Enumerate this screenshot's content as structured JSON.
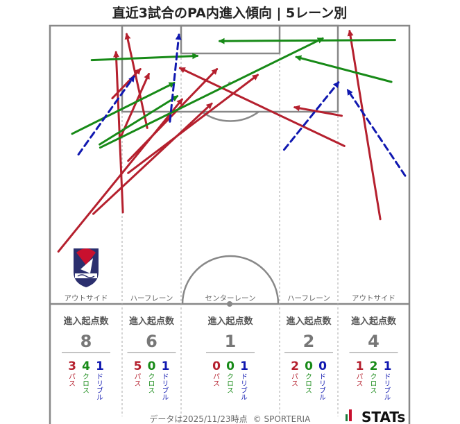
{
  "title": "直近3試合のPA内進入傾向 | 5レーン別",
  "colors": {
    "pass": "#b5202e",
    "cross": "#178a17",
    "dribble": "#1018b0",
    "pitch_line": "#888888"
  },
  "chart_data": {
    "type": "pitch-arrows",
    "lanes": [
      {
        "name": "アウトサイド",
        "header": "進入起点数",
        "total": 8,
        "counts": [
          {
            "type": "pass",
            "value": 3,
            "label": "パス"
          },
          {
            "type": "cross",
            "value": 4,
            "label": "クロス"
          },
          {
            "type": "dribble",
            "value": 1,
            "label": "ドリブル"
          }
        ]
      },
      {
        "name": "ハーフレーン",
        "header": "進入起点数",
        "total": 6,
        "counts": [
          {
            "type": "pass",
            "value": 5,
            "label": "パス"
          },
          {
            "type": "cross",
            "value": 0,
            "label": "クロス"
          },
          {
            "type": "dribble",
            "value": 1,
            "label": "ドリブル"
          }
        ]
      },
      {
        "name": "センターレーン",
        "header": "進入起点数",
        "total": 1,
        "counts": [
          {
            "type": "pass",
            "value": 0,
            "label": "パス"
          },
          {
            "type": "cross",
            "value": 0,
            "label": "クロス"
          },
          {
            "type": "dribble",
            "value": 1,
            "label": "ドリブル"
          }
        ]
      },
      {
        "name": "ハーフレーン",
        "header": "進入起点数",
        "total": 2,
        "counts": [
          {
            "type": "pass",
            "value": 2,
            "label": "パス"
          },
          {
            "type": "cross",
            "value": 0,
            "label": "クロス"
          },
          {
            "type": "dribble",
            "value": 0,
            "label": "ドリブル"
          }
        ]
      },
      {
        "name": "アウトサイド",
        "header": "進入起点数",
        "total": 4,
        "counts": [
          {
            "type": "pass",
            "value": 1,
            "label": "パス"
          },
          {
            "type": "cross",
            "value": 2,
            "label": "クロス"
          },
          {
            "type": "dribble",
            "value": 1,
            "label": "ドリブル"
          }
        ]
      }
    ],
    "arrow_units": "pitch metres across width (0-68) and distance from own goal line (half pitch 52.5-105)",
    "arrows": [
      {
        "type": "pass",
        "from": [
          1.6,
          62.4
        ],
        "to": [
          25.0,
          91.1
        ]
      },
      {
        "type": "pass",
        "from": [
          8.2,
          69.5
        ],
        "to": [
          30.6,
          90.3
        ]
      },
      {
        "type": "pass",
        "from": [
          14.8,
          77.2
        ],
        "to": [
          39.3,
          95.7
        ]
      },
      {
        "type": "pass",
        "from": [
          13.8,
          69.8
        ],
        "to": [
          12.5,
          100.0
        ]
      },
      {
        "type": "pass",
        "from": [
          18.4,
          85.7
        ],
        "to": [
          14.5,
          103.4
        ]
      },
      {
        "type": "pass",
        "from": [
          13.2,
          83.6
        ],
        "to": [
          18.7,
          95.9
        ]
      },
      {
        "type": "pass",
        "from": [
          11.8,
          91.3
        ],
        "to": [
          17.1,
          96.8
        ]
      },
      {
        "type": "pass",
        "from": [
          62.5,
          68.5
        ],
        "to": [
          56.7,
          104.0
        ]
      },
      {
        "type": "pass",
        "from": [
          55.7,
          82.3
        ],
        "to": [
          24.6,
          97.0
        ]
      },
      {
        "type": "pass",
        "from": [
          55.2,
          88.0
        ],
        "to": [
          46.3,
          89.6
        ]
      },
      {
        "type": "pass",
        "from": [
          14.8,
          79.5
        ],
        "to": [
          31.6,
          96.8
        ]
      },
      {
        "type": "cross",
        "from": [
          4.2,
          84.6
        ],
        "to": [
          23.5,
          94.2
        ]
      },
      {
        "type": "cross",
        "from": [
          9.4,
          82.6
        ],
        "to": [
          24.1,
          91.7
        ]
      },
      {
        "type": "cross",
        "from": [
          9.5,
          82.0
        ],
        "to": [
          51.6,
          102.6
        ]
      },
      {
        "type": "cross",
        "from": [
          7.9,
          98.5
        ],
        "to": [
          27.9,
          99.3
        ]
      },
      {
        "type": "cross",
        "from": [
          65.3,
          102.3
        ],
        "to": [
          32.1,
          102.1
        ]
      },
      {
        "type": "cross",
        "from": [
          64.6,
          94.4
        ],
        "to": [
          46.6,
          99.1
        ]
      },
      {
        "type": "dribble",
        "from": [
          5.4,
          80.7
        ],
        "to": [
          15.9,
          95.4
        ]
      },
      {
        "type": "dribble",
        "from": [
          22.7,
          86.9
        ],
        "to": [
          24.4,
          103.3
        ]
      },
      {
        "type": "dribble",
        "from": [
          44.3,
          81.6
        ],
        "to": [
          54.6,
          94.3
        ]
      },
      {
        "type": "dribble",
        "from": [
          67.2,
          76.7
        ],
        "to": [
          56.3,
          92.9
        ]
      }
    ]
  },
  "footer": {
    "date": "データは2025/11/23時点",
    "copyright": "© SPORTERIA",
    "brand": "STATs"
  },
  "logo": {
    "name": "Fagiano"
  }
}
